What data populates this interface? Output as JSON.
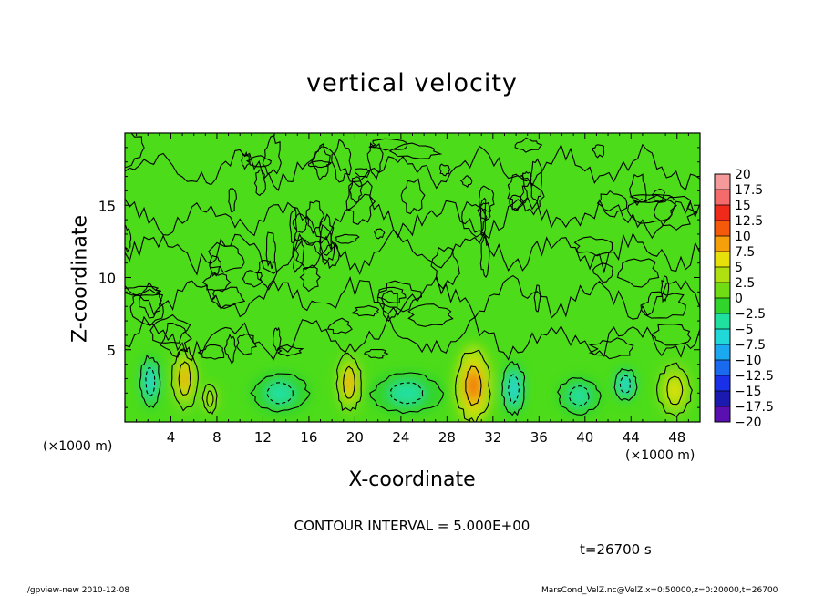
{
  "title": "vertical velocity",
  "xlabel": "X-coordinate",
  "ylabel": "Z-coordinate",
  "x_unit": "(×1000 m)",
  "x_unit_right": "(×1000 m)",
  "contour_interval_text": "CONTOUR INTERVAL = 5.000E+00",
  "time_text": "t=26700 s",
  "footer_left": "./gpview-new  2010-12-08",
  "footer_right": "MarsCond_VelZ.nc@VelZ,x=0:50000,z=0:20000,t=26700",
  "colors": {
    "background_field": "#4ddc1a",
    "contour_line": "#000000"
  },
  "chart_data": {
    "type": "heatmap",
    "title": "vertical velocity",
    "xlabel": "X-coordinate",
    "ylabel": "Z-coordinate",
    "xlim": [
      0,
      50
    ],
    "ylim": [
      0,
      20
    ],
    "x_ticks": [
      4,
      8,
      12,
      16,
      20,
      24,
      28,
      32,
      36,
      40,
      44,
      48
    ],
    "x_tick_labels": [
      "4",
      "8",
      "12",
      "16",
      "20",
      "24",
      "28",
      "32",
      "36",
      "40",
      "44",
      "48"
    ],
    "y_ticks": [
      5,
      10,
      15
    ],
    "y_tick_labels": [
      "5",
      "10",
      "15"
    ],
    "contour_interval": 5.0,
    "time_s": 26700,
    "field_background_value": 0,
    "colorbar": {
      "labels": [
        "20",
        "17.5",
        "15",
        "12.5",
        "10",
        "7.5",
        "5",
        "2.5",
        "0",
        "−2.5",
        "−5",
        "−7.5",
        "−10",
        "−12.5",
        "−15",
        "−17.5",
        "−20"
      ],
      "bins_top_to_bottom": [
        {
          "min": 17.5,
          "max": 20,
          "color": "#f59a9a"
        },
        {
          "min": 15,
          "max": 17.5,
          "color": "#f56a6a"
        },
        {
          "min": 12.5,
          "max": 15,
          "color": "#f02a1a"
        },
        {
          "min": 10,
          "max": 12.5,
          "color": "#f55a0a"
        },
        {
          "min": 7.5,
          "max": 10,
          "color": "#f5a00a"
        },
        {
          "min": 5,
          "max": 7.5,
          "color": "#e8e00a"
        },
        {
          "min": 2.5,
          "max": 5,
          "color": "#b0e010"
        },
        {
          "min": 0,
          "max": 2.5,
          "color": "#70dc14"
        },
        {
          "min": -2.5,
          "max": 0,
          "color": "#30d42a"
        },
        {
          "min": -5,
          "max": -2.5,
          "color": "#20e0a0"
        },
        {
          "min": -7.5,
          "max": -5,
          "color": "#20d8d8"
        },
        {
          "min": -10,
          "max": -7.5,
          "color": "#1aa8f0"
        },
        {
          "min": -12.5,
          "max": -10,
          "color": "#1a6af0"
        },
        {
          "min": -15,
          "max": -12.5,
          "color": "#1a30e8"
        },
        {
          "min": -17.5,
          "max": -15,
          "color": "#1a1ab0"
        },
        {
          "min": -20,
          "max": -17.5,
          "color": "#5a10b0"
        }
      ]
    },
    "features": [
      {
        "kind": "updraft",
        "x": 5.2,
        "z": 3.0,
        "max": 7.5,
        "rx": 0.9,
        "rz": 1.9
      },
      {
        "kind": "updraft",
        "x": 19.5,
        "z": 2.7,
        "max": 7.5,
        "rx": 0.9,
        "rz": 1.8
      },
      {
        "kind": "updraft",
        "x": 30.3,
        "z": 2.5,
        "max": 10,
        "rx": 1.2,
        "rz": 2.2
      },
      {
        "kind": "updraft",
        "x": 47.8,
        "z": 2.2,
        "max": 5,
        "rx": 1.2,
        "rz": 1.6
      },
      {
        "kind": "updraft",
        "x": 7.4,
        "z": 1.6,
        "max": 5,
        "rx": 0.5,
        "rz": 0.9
      },
      {
        "kind": "downdraft",
        "x": 2.2,
        "z": 2.8,
        "min": -7.5,
        "rx": 0.7,
        "rz": 1.6
      },
      {
        "kind": "downdraft",
        "x": 33.8,
        "z": 2.3,
        "min": -7.5,
        "rx": 0.8,
        "rz": 1.6
      },
      {
        "kind": "downdraft",
        "x": 43.5,
        "z": 2.6,
        "min": -7.5,
        "rx": 0.8,
        "rz": 1.0
      },
      {
        "kind": "downdraft",
        "x": 24.5,
        "z": 2.0,
        "min": -5,
        "rx": 2.5,
        "rz": 1.2
      },
      {
        "kind": "downdraft",
        "x": 13.5,
        "z": 2.0,
        "min": -5,
        "rx": 2.0,
        "rz": 1.2
      },
      {
        "kind": "downdraft",
        "x": 39.5,
        "z": 1.8,
        "min": -5,
        "rx": 1.5,
        "rz": 1.1
      }
    ]
  }
}
